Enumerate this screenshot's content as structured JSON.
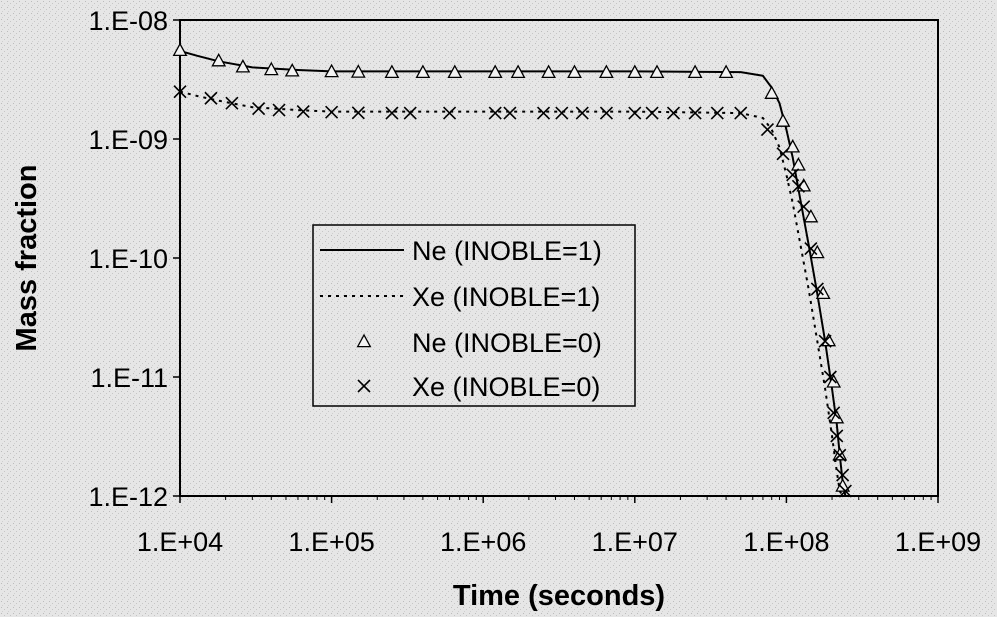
{
  "chart_data": {
    "type": "line",
    "title": "",
    "xlabel": "Time (seconds)",
    "ylabel": "Mass fraction",
    "xscale": "log",
    "yscale": "log",
    "xlim": [
      10000,
      1000000000
    ],
    "ylim": [
      1e-12,
      1e-08
    ],
    "x_tick_labels": [
      "1.E+04",
      "1.E+05",
      "1.E+06",
      "1.E+07",
      "1.E+08",
      "1.E+09"
    ],
    "y_tick_labels": [
      "1.E-08",
      "1.E-09",
      "1.E-10",
      "1.E-11",
      "1.E-12"
    ],
    "grid": false,
    "legend_position": "center",
    "series": [
      {
        "name": "Ne (INOBLE=1)",
        "style": "solid-line",
        "color": "#000000",
        "x": [
          10000,
          13000,
          18000,
          30000,
          60000,
          100000,
          1000000,
          10000000,
          50000000,
          70000000,
          80000000,
          90000000,
          100000000,
          110000000,
          120000000,
          140000000,
          160000000,
          180000000,
          200000000,
          215000000,
          225000000,
          235000000,
          245000000
        ],
        "y": [
          5.5e-09,
          5e-09,
          4.5e-09,
          4e-09,
          3.8e-09,
          3.7e-09,
          3.7e-09,
          3.7e-09,
          3.65e-09,
          3.4e-09,
          2.7e-09,
          2e-09,
          1.2e-09,
          7e-10,
          3.8e-10,
          1.3e-10,
          5e-11,
          2e-11,
          8e-12,
          4e-12,
          2.2e-12,
          1.3e-12,
          1e-12
        ]
      },
      {
        "name": "Xe (INOBLE=1)",
        "style": "dotted-line",
        "color": "#000000",
        "x": [
          10000,
          13000,
          18000,
          30000,
          60000,
          100000,
          1000000,
          10000000,
          50000000,
          70000000,
          80000000,
          90000000,
          100000000,
          110000000,
          120000000,
          140000000,
          160000000,
          180000000,
          200000000,
          215000000,
          225000000,
          235000000,
          245000000
        ],
        "y": [
          2.5e-09,
          2.3e-09,
          2.1e-09,
          1.85e-09,
          1.75e-09,
          1.7e-09,
          1.7e-09,
          1.7e-09,
          1.65e-09,
          1.5e-09,
          1.2e-09,
          8.5e-10,
          5e-10,
          2.9e-10,
          1.6e-10,
          5.5e-11,
          2e-11,
          8e-12,
          3.2e-12,
          1.6e-12,
          1.1e-12,
          1e-12,
          1e-12
        ]
      },
      {
        "name": "Ne (INOBLE=0)",
        "style": "triangle-markers",
        "color": "#000000",
        "x": [
          10000,
          18000,
          26000,
          40000,
          55000,
          100000,
          150000,
          250000,
          400000,
          650000,
          1200000,
          1700000,
          2700000,
          4000000,
          6500000,
          10000000,
          14000000,
          25000000,
          40000000,
          80000000,
          95000000,
          110000000,
          120000000,
          130000000,
          145000000,
          160000000,
          175000000,
          190000000,
          205000000,
          215000000,
          225000000,
          235000000
        ],
        "y": [
          5.5e-09,
          4.5e-09,
          4e-09,
          3.8e-09,
          3.7e-09,
          3.65e-09,
          3.62e-09,
          3.6e-09,
          3.6e-09,
          3.6e-09,
          3.6e-09,
          3.6e-09,
          3.6e-09,
          3.6e-09,
          3.6e-09,
          3.6e-09,
          3.6e-09,
          3.6e-09,
          3.6e-09,
          2.4e-09,
          1.4e-09,
          8.5e-10,
          6e-10,
          4e-10,
          2.2e-10,
          1.1e-10,
          5e-11,
          2e-11,
          9e-12,
          4.5e-12,
          2.2e-12,
          1.2e-12
        ]
      },
      {
        "name": "Xe (INOBLE=0)",
        "style": "x-markers",
        "color": "#000000",
        "x": [
          10000,
          16000,
          22000,
          33000,
          45000,
          65000,
          100000,
          150000,
          250000,
          330000,
          600000,
          1200000,
          1500000,
          2500000,
          3300000,
          4500000,
          6500000,
          10000000,
          13000000,
          18000000,
          25000000,
          35000000,
          50000000,
          75000000,
          95000000,
          110000000,
          120000000,
          130000000,
          145000000,
          160000000,
          180000000,
          195000000,
          205000000,
          215000000,
          225000000,
          235000000,
          245000000
        ],
        "y": [
          2.5e-09,
          2.2e-09,
          2e-09,
          1.8e-09,
          1.75e-09,
          1.7e-09,
          1.68e-09,
          1.66e-09,
          1.65e-09,
          1.65e-09,
          1.65e-09,
          1.65e-09,
          1.65e-09,
          1.65e-09,
          1.65e-09,
          1.65e-09,
          1.65e-09,
          1.65e-09,
          1.65e-09,
          1.65e-09,
          1.65e-09,
          1.65e-09,
          1.65e-09,
          1.2e-09,
          7.5e-10,
          5e-10,
          4e-10,
          2.7e-10,
          1.2e-10,
          5.5e-11,
          2e-11,
          1e-11,
          5e-12,
          3.2e-12,
          2.2e-12,
          1.5e-12,
          1.1e-12
        ]
      }
    ]
  }
}
